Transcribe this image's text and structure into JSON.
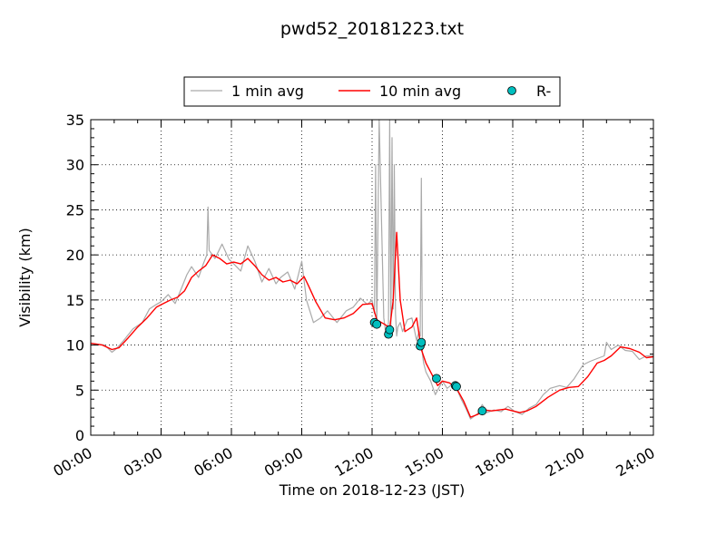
{
  "chart_data": {
    "type": "line",
    "title": "pwd52_20181223.txt",
    "xlabel": "Time on 2018-12-23 (JST)",
    "ylabel": "Visibility (km)",
    "xlim": [
      0,
      24
    ],
    "ylim": [
      0,
      35
    ],
    "x_unit": "hours",
    "xticks": [
      0,
      3,
      6,
      9,
      12,
      15,
      18,
      21,
      24
    ],
    "xtick_labels": [
      "00:00",
      "03:00",
      "06:00",
      "09:00",
      "12:00",
      "15:00",
      "18:00",
      "21:00",
      "24:00"
    ],
    "yticks": [
      0,
      5,
      10,
      15,
      20,
      25,
      30,
      35
    ],
    "ytick_labels": [
      "0",
      "5",
      "10",
      "15",
      "20",
      "25",
      "30",
      "35"
    ],
    "grid": true,
    "legend_position": "top-center",
    "series": [
      {
        "name": "1 min avg",
        "color": "#aaaaaa",
        "kind": "line",
        "x": [
          0,
          0.3,
          0.6,
          0.9,
          1.1,
          1.4,
          1.8,
          2.2,
          2.5,
          2.8,
          3.0,
          3.3,
          3.6,
          3.9,
          4.1,
          4.3,
          4.6,
          4.8,
          4.95,
          5.0,
          5.05,
          5.3,
          5.6,
          5.9,
          6.1,
          6.4,
          6.7,
          7.0,
          7.3,
          7.6,
          7.9,
          8.1,
          8.4,
          8.7,
          9.0,
          9.2,
          9.5,
          9.8,
          10.1,
          10.5,
          10.9,
          11.2,
          11.5,
          11.8,
          12.0,
          12.1,
          12.15,
          12.2,
          12.3,
          12.5,
          12.6,
          12.7,
          12.75,
          12.8,
          12.85,
          12.9,
          12.95,
          13.0,
          13.05,
          13.1,
          13.2,
          13.3,
          13.5,
          13.7,
          13.9,
          14.0,
          14.05,
          14.1,
          14.15,
          14.2,
          14.3,
          14.5,
          14.7,
          14.8,
          15.0,
          15.2,
          15.5,
          15.8,
          16.0,
          16.2,
          16.5,
          16.7,
          16.9,
          17.2,
          17.5,
          17.8,
          18.1,
          18.4,
          18.7,
          19.0,
          19.3,
          19.6,
          20.0,
          20.3,
          20.6,
          21.0,
          21.3,
          21.6,
          21.9,
          22.0,
          22.2,
          22.5,
          22.8,
          23.1,
          23.4,
          23.7,
          24.0
        ],
        "y": [
          10.2,
          10.1,
          10.0,
          9.2,
          9.6,
          10.5,
          11.8,
          12.5,
          14.0,
          14.5,
          14.8,
          15.6,
          14.6,
          16.5,
          17.8,
          18.7,
          17.5,
          19.0,
          20.0,
          25.3,
          20.5,
          19.6,
          21.2,
          19.5,
          19.0,
          18.2,
          21.0,
          19.3,
          17.0,
          18.5,
          16.8,
          17.5,
          18.1,
          16.2,
          19.3,
          15.0,
          12.5,
          13.0,
          13.8,
          12.5,
          13.8,
          14.2,
          15.2,
          14.5,
          15.0,
          13.5,
          30.0,
          12.0,
          35.0,
          13.0,
          11.0,
          12.5,
          35.0,
          11.8,
          33.0,
          14.0,
          30.0,
          13.5,
          11.0,
          12.0,
          12.5,
          11.5,
          12.8,
          13.0,
          10.5,
          11.5,
          11.0,
          28.5,
          9.0,
          8.0,
          7.0,
          6.0,
          4.5,
          5.0,
          6.0,
          5.2,
          5.8,
          4.0,
          3.0,
          1.8,
          2.4,
          3.4,
          2.5,
          2.8,
          2.6,
          3.2,
          2.6,
          2.3,
          3.0,
          3.4,
          4.5,
          5.2,
          5.5,
          5.3,
          6.2,
          7.8,
          8.2,
          8.5,
          8.8,
          10.3,
          9.5,
          10.0,
          9.4,
          9.3,
          8.4,
          8.8,
          8.8
        ]
      },
      {
        "name": "10 min avg",
        "color": "#ff0000",
        "kind": "line",
        "x": [
          0,
          0.5,
          0.9,
          1.2,
          1.6,
          2.0,
          2.4,
          2.8,
          3.1,
          3.4,
          3.7,
          4.0,
          4.3,
          4.6,
          4.9,
          5.2,
          5.5,
          5.8,
          6.1,
          6.4,
          6.7,
          7.0,
          7.3,
          7.6,
          7.9,
          8.2,
          8.5,
          8.8,
          9.1,
          9.3,
          9.6,
          10.0,
          10.4,
          10.8,
          11.2,
          11.6,
          12.0,
          12.2,
          12.4,
          12.6,
          12.75,
          12.9,
          13.05,
          13.2,
          13.4,
          13.7,
          13.9,
          14.1,
          14.3,
          14.6,
          14.8,
          15.0,
          15.3,
          15.6,
          15.9,
          16.2,
          16.5,
          16.8,
          17.1,
          17.4,
          17.7,
          18.0,
          18.3,
          18.6,
          19.0,
          19.5,
          20.0,
          20.4,
          20.8,
          21.2,
          21.6,
          21.9,
          22.2,
          22.6,
          23.0,
          23.4,
          23.7,
          24.0
        ],
        "y": [
          10.2,
          10.0,
          9.5,
          9.7,
          10.8,
          12.0,
          13.0,
          14.2,
          14.6,
          15.0,
          15.3,
          16.0,
          17.5,
          18.2,
          18.8,
          20.0,
          19.6,
          19.0,
          19.2,
          19.0,
          19.6,
          18.8,
          17.8,
          17.2,
          17.5,
          17.0,
          17.2,
          16.8,
          17.6,
          16.5,
          14.8,
          13.0,
          12.8,
          13.0,
          13.5,
          14.5,
          14.6,
          12.8,
          12.5,
          12.2,
          11.8,
          15.0,
          22.5,
          15.0,
          11.5,
          12.0,
          13.0,
          9.5,
          8.0,
          6.5,
          5.5,
          6.0,
          5.8,
          5.2,
          3.8,
          2.0,
          2.3,
          2.8,
          2.7,
          2.8,
          2.9,
          2.7,
          2.5,
          2.7,
          3.2,
          4.2,
          5.0,
          5.3,
          5.4,
          6.5,
          8.0,
          8.3,
          8.8,
          9.8,
          9.6,
          9.2,
          8.6,
          8.7
        ]
      },
      {
        "name": "R-",
        "color": "#00bfbf",
        "kind": "scatter",
        "x": [
          12.1,
          12.2,
          12.7,
          12.75,
          14.05,
          14.1,
          14.75,
          15.55,
          15.6,
          16.7
        ],
        "y": [
          12.5,
          12.3,
          11.2,
          11.7,
          9.9,
          10.3,
          6.3,
          5.5,
          5.4,
          2.7
        ]
      }
    ]
  }
}
